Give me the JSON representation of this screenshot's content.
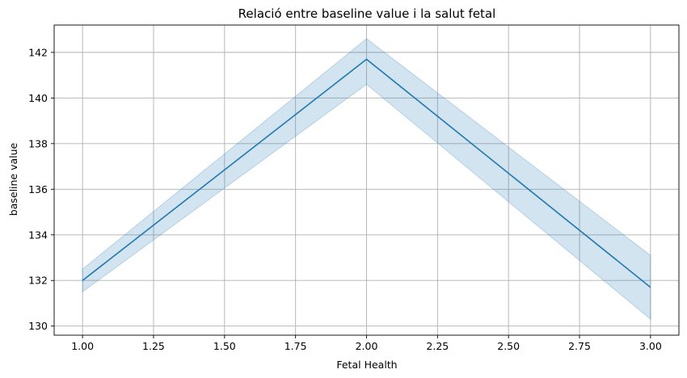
{
  "chart_data": {
    "type": "line",
    "title": "Relació entre baseline value i la salut fetal",
    "xlabel": "Fetal Health",
    "ylabel": "baseline value",
    "xlim": [
      0.9,
      3.1
    ],
    "ylim": [
      129.6,
      143.2
    ],
    "xticks": [
      1.0,
      1.25,
      1.5,
      1.75,
      2.0,
      2.25,
      2.5,
      2.75,
      3.0
    ],
    "xtick_labels": [
      "1.00",
      "1.25",
      "1.50",
      "1.75",
      "2.00",
      "2.25",
      "2.50",
      "2.75",
      "3.00"
    ],
    "yticks": [
      130,
      132,
      134,
      136,
      138,
      140,
      142
    ],
    "ytick_labels": [
      "130",
      "132",
      "134",
      "136",
      "138",
      "140",
      "142"
    ],
    "grid": true,
    "series": [
      {
        "x": [
          1.0,
          2.0,
          3.0
        ],
        "y": [
          132.0,
          141.7,
          131.7
        ],
        "ci_low": [
          131.5,
          140.6,
          130.3
        ],
        "ci_high": [
          132.5,
          142.6,
          133.1
        ],
        "color": "#1f77b4",
        "band_color": "#1f77b4"
      }
    ]
  }
}
